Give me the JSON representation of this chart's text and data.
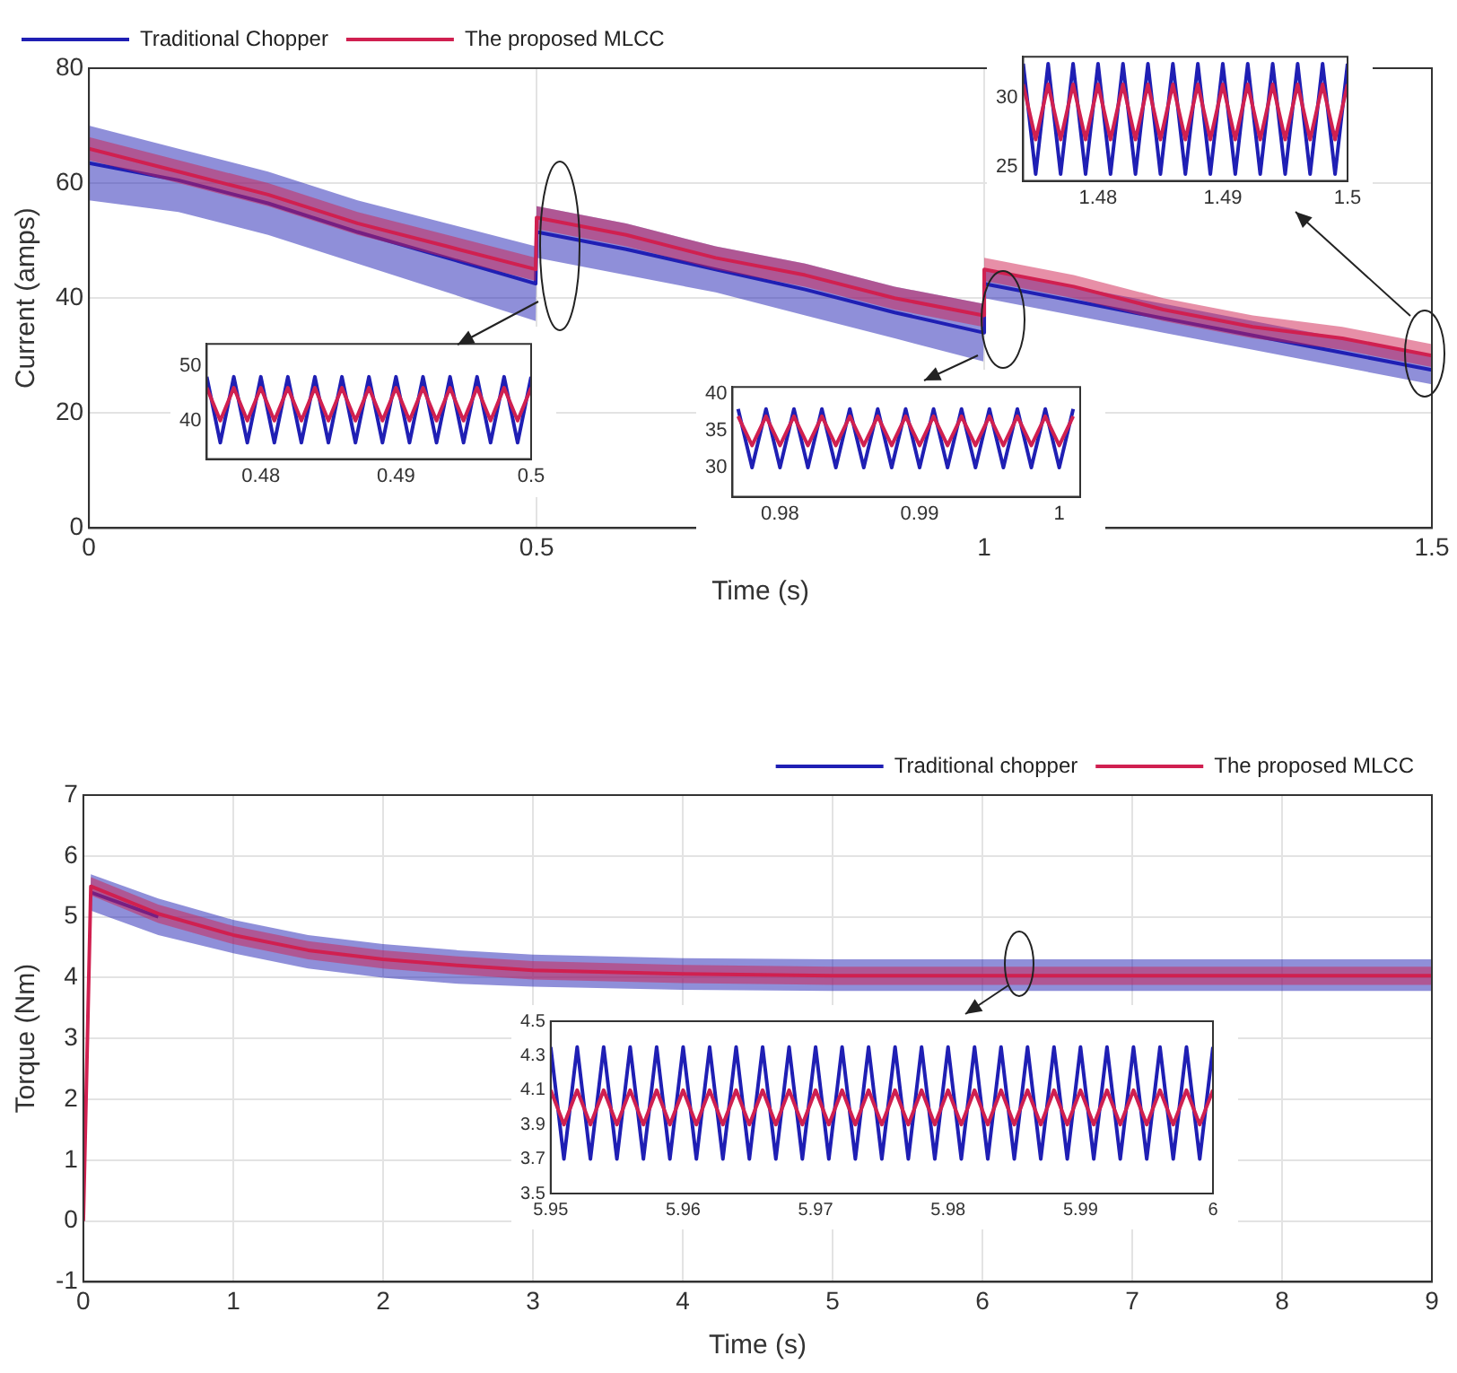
{
  "chart_data": [
    {
      "type": "line",
      "xlabel": "Time (s)",
      "ylabel": "Current (amps)",
      "xlim": [
        0,
        1.5
      ],
      "ylim": [
        0,
        80
      ],
      "xticks": [
        0,
        0.5,
        1,
        1.5
      ],
      "yticks": [
        0,
        20,
        40,
        60,
        80
      ],
      "grid": true,
      "legend": "top left",
      "x": [
        0,
        0.1,
        0.2,
        0.3,
        0.4,
        0.499,
        0.5,
        0.6,
        0.7,
        0.8,
        0.9,
        0.999,
        1.0,
        1.1,
        1.2,
        1.3,
        1.4,
        1.5
      ],
      "series": [
        {
          "name": "Traditional Chopper",
          "color": "#1f1fb4",
          "values": [
            63.5,
            60.5,
            56.5,
            51.5,
            47,
            42.5,
            51.5,
            48.5,
            45,
            41.5,
            37.5,
            34,
            42.5,
            39.5,
            36.5,
            33.5,
            30.5,
            27.5
          ],
          "lower": [
            57,
            55,
            51,
            46,
            41,
            36,
            47,
            44,
            41,
            37,
            33,
            29,
            40,
            37,
            34,
            31,
            28,
            25
          ],
          "upper": [
            70,
            66,
            62,
            57,
            53,
            49,
            56,
            53,
            49,
            46,
            42,
            39,
            45,
            42,
            39,
            36,
            33,
            30
          ]
        },
        {
          "name": "The proposed MLCC",
          "color": "#d02050",
          "values": [
            66,
            62,
            58,
            53,
            49,
            45,
            54,
            51,
            47,
            44,
            40,
            37,
            45,
            42,
            38,
            35,
            33,
            30
          ],
          "lower": [
            64,
            60,
            56,
            51,
            47,
            43,
            52,
            49,
            45,
            42,
            38,
            35,
            43,
            40,
            36,
            33,
            31,
            28
          ],
          "upper": [
            68,
            64,
            60,
            55,
            51,
            47,
            56,
            53,
            49,
            46,
            42,
            39,
            47,
            44,
            40,
            37,
            35,
            32
          ]
        }
      ]
    },
    {
      "type": "line",
      "xlim": [
        0.476,
        0.5
      ],
      "ylim": [
        33,
        54
      ],
      "xticks": [
        0.48,
        0.49,
        0.5
      ],
      "yticks": [
        40,
        50
      ],
      "x": [
        0.476,
        0.477,
        0.478,
        0.479,
        0.48,
        0.481,
        0.482,
        0.483,
        0.484,
        0.485,
        0.486,
        0.487,
        0.488,
        0.489,
        0.49,
        0.491,
        0.492,
        0.493,
        0.494,
        0.495,
        0.496,
        0.497,
        0.498,
        0.499,
        0.5
      ],
      "series": [
        {
          "color": "#1f1fb4",
          "values": [
            48,
            36,
            48,
            36,
            48,
            36,
            48,
            36,
            48,
            36,
            48,
            36,
            48,
            36,
            48,
            36,
            48,
            36,
            48,
            36,
            48,
            36,
            48,
            36,
            48
          ]
        },
        {
          "color": "#d02050",
          "values": [
            46,
            40,
            46,
            40,
            46,
            40,
            46,
            40,
            46,
            40,
            46,
            40,
            46,
            40,
            46,
            40,
            46,
            40,
            46,
            40,
            46,
            40,
            46,
            40,
            46
          ]
        }
      ]
    },
    {
      "type": "line",
      "xlim": [
        0.9766,
        1.0015
      ],
      "ylim": [
        26,
        41
      ],
      "xticks": [
        0.98,
        0.99,
        1
      ],
      "yticks": [
        30,
        35,
        40
      ],
      "x": [
        0.977,
        0.978,
        0.979,
        0.98,
        0.981,
        0.982,
        0.983,
        0.984,
        0.985,
        0.986,
        0.987,
        0.988,
        0.989,
        0.99,
        0.991,
        0.992,
        0.993,
        0.994,
        0.995,
        0.996,
        0.997,
        0.998,
        0.999,
        1,
        1.001
      ],
      "series": [
        {
          "color": "#1f1fb4",
          "values": [
            38,
            30,
            38,
            30,
            38,
            30,
            38,
            30,
            38,
            30,
            38,
            30,
            38,
            30,
            38,
            30,
            38,
            30,
            38,
            30,
            38,
            30,
            38,
            30,
            38
          ]
        },
        {
          "color": "#d02050",
          "values": [
            37,
            33,
            37,
            33,
            37,
            33,
            37,
            33,
            37,
            33,
            37,
            33,
            37,
            33,
            37,
            33,
            37,
            33,
            37,
            33,
            37,
            33,
            37,
            33,
            37
          ]
        }
      ]
    },
    {
      "type": "line",
      "xlim": [
        1.474,
        1.5
      ],
      "ylim": [
        24,
        33
      ],
      "xticks": [
        1.48,
        1.49,
        1.5
      ],
      "yticks": [
        25,
        30
      ],
      "x": [
        1.474,
        1.475,
        1.476,
        1.477,
        1.478,
        1.479,
        1.48,
        1.481,
        1.482,
        1.483,
        1.484,
        1.485,
        1.486,
        1.487,
        1.488,
        1.489,
        1.49,
        1.491,
        1.492,
        1.493,
        1.494,
        1.495,
        1.496,
        1.497,
        1.498,
        1.499,
        1.5
      ],
      "series": [
        {
          "color": "#1f1fb4",
          "values": [
            32.5,
            24.5,
            32.5,
            24.5,
            32.5,
            24.5,
            32.5,
            24.5,
            32.5,
            24.5,
            32.5,
            24.5,
            32.5,
            24.5,
            32.5,
            24.5,
            32.5,
            24.5,
            32.5,
            24.5,
            32.5,
            24.5,
            32.5,
            24.5,
            32.5,
            24.5,
            32.5
          ]
        },
        {
          "color": "#d02050",
          "values": [
            31,
            27,
            31,
            27,
            31,
            27,
            31,
            27,
            31,
            27,
            31,
            27,
            31,
            27,
            31,
            27,
            31,
            27,
            31,
            27,
            31,
            27,
            31,
            27,
            31,
            27,
            31
          ]
        }
      ]
    },
    {
      "type": "line",
      "xlabel": "Time (s)",
      "ylabel": "Torque (Nm)",
      "xlim": [
        0,
        9
      ],
      "ylim": [
        -1,
        7
      ],
      "xticks": [
        0,
        1,
        2,
        3,
        4,
        5,
        6,
        7,
        8,
        9
      ],
      "yticks": [
        -1,
        0,
        1,
        2,
        3,
        4,
        5,
        6,
        7
      ],
      "grid": true,
      "legend": "top right",
      "x": [
        0,
        0.05,
        0.5,
        1,
        1.5,
        2,
        2.5,
        3,
        4,
        5,
        6,
        7,
        8,
        9
      ],
      "series": [
        {
          "name": "Traditional chopper",
          "color": "#1f1fb4",
          "values": [
            null,
            5.4,
            5.0,
            null,
            null,
            null,
            null,
            null,
            null,
            null,
            null,
            null,
            null,
            null
          ],
          "lower": [
            0,
            5.1,
            4.7,
            4.4,
            4.15,
            4.0,
            3.9,
            3.85,
            3.8,
            3.78,
            3.78,
            3.78,
            3.78,
            3.78
          ],
          "upper": [
            0,
            5.7,
            5.3,
            4.95,
            4.7,
            4.55,
            4.45,
            4.38,
            4.32,
            4.3,
            4.3,
            4.3,
            4.3,
            4.3
          ]
        },
        {
          "name": "The proposed MLCC",
          "color": "#d02050",
          "values": [
            0,
            5.5,
            5.05,
            4.7,
            4.45,
            4.3,
            4.2,
            4.12,
            4.06,
            4.03,
            4.03,
            4.03,
            4.03,
            4.03
          ],
          "lower": [
            0,
            5.35,
            4.9,
            4.55,
            4.3,
            4.15,
            4.05,
            3.97,
            3.91,
            3.88,
            3.88,
            3.88,
            3.88,
            3.88
          ],
          "upper": [
            0,
            5.65,
            5.2,
            4.85,
            4.6,
            4.45,
            4.35,
            4.27,
            4.21,
            4.18,
            4.18,
            4.18,
            4.18,
            4.18
          ]
        }
      ]
    },
    {
      "type": "line",
      "xlim": [
        5.95,
        6
      ],
      "ylim": [
        3.5,
        4.5
      ],
      "xticks": [
        5.95,
        5.96,
        5.97,
        5.98,
        5.99,
        6
      ],
      "yticks": [
        3.5,
        3.7,
        3.9,
        4.1,
        4.3,
        4.5
      ],
      "x": [
        5.95,
        5.951,
        5.952,
        5.953,
        5.954,
        5.955,
        5.956,
        5.957,
        5.958,
        5.959,
        5.96,
        5.961,
        5.962,
        5.963,
        5.964,
        5.965,
        5.966,
        5.967,
        5.968,
        5.969,
        5.97,
        5.971,
        5.972,
        5.973,
        5.974,
        5.975,
        5.976,
        5.977,
        5.978,
        5.979,
        5.98,
        5.981,
        5.982,
        5.983,
        5.984,
        5.985,
        5.986,
        5.987,
        5.988,
        5.989,
        5.99,
        5.991,
        5.992,
        5.993,
        5.994,
        5.995,
        5.996,
        5.997,
        5.998,
        5.999,
        6
      ],
      "series": [
        {
          "color": "#1f1fb4",
          "values": [
            4.35,
            3.7,
            4.35,
            3.7,
            4.35,
            3.7,
            4.35,
            3.7,
            4.35,
            3.7,
            4.35,
            3.7,
            4.35,
            3.7,
            4.35,
            3.7,
            4.35,
            3.7,
            4.35,
            3.7,
            4.35,
            3.7,
            4.35,
            3.7,
            4.35,
            3.7,
            4.35,
            3.7,
            4.35,
            3.7,
            4.35,
            3.7,
            4.35,
            3.7,
            4.35,
            3.7,
            4.35,
            3.7,
            4.35,
            3.7,
            4.35,
            3.7,
            4.35,
            3.7,
            4.35,
            3.7,
            4.35,
            3.7,
            4.35,
            3.7,
            4.35
          ]
        },
        {
          "color": "#d02050",
          "values": [
            4.1,
            3.9,
            4.1,
            3.9,
            4.1,
            3.9,
            4.1,
            3.9,
            4.1,
            3.9,
            4.1,
            3.9,
            4.1,
            3.9,
            4.1,
            3.9,
            4.1,
            3.9,
            4.1,
            3.9,
            4.1,
            3.9,
            4.1,
            3.9,
            4.1,
            3.9,
            4.1,
            3.9,
            4.1,
            3.9,
            4.1,
            3.9,
            4.1,
            3.9,
            4.1,
            3.9,
            4.1,
            3.9,
            4.1,
            3.9,
            4.1,
            3.9,
            4.1,
            3.9,
            4.1,
            3.9,
            4.1,
            3.9,
            4.1,
            3.9,
            4.1
          ]
        }
      ]
    }
  ]
}
